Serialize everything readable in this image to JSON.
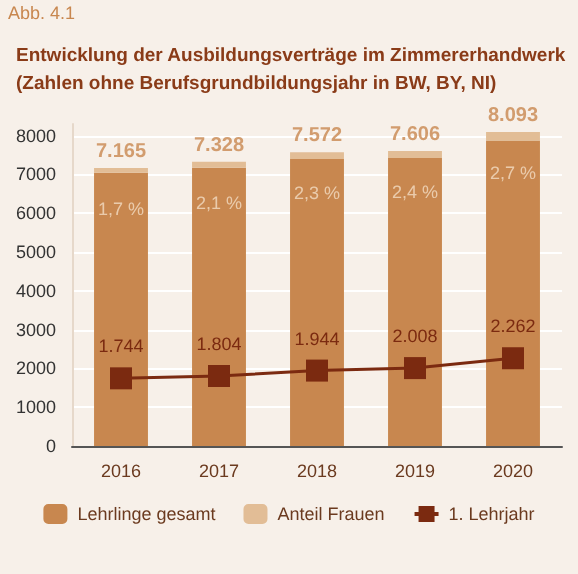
{
  "chart_data": {
    "type": "bar",
    "title": "Entwicklung der Ausbildungsverträge im Zimmererhandwerk\n(Zahlen ohne Berufsgrundbildungsjahr in BW, BY, NI)",
    "annotations": [
      "Abb. 4.1",
      {
        "text": "1,7 %",
        "x": "2016",
        "y": 7165
      },
      {
        "text": "2,1 %",
        "x": "2017",
        "y": 7328
      },
      {
        "text": "2,3 %",
        "x": "2018",
        "y": 7572
      },
      {
        "text": "2,4 %",
        "x": "2019",
        "y": 7606
      },
      {
        "text": "2,7 %",
        "x": "2020",
        "y": 8093
      }
    ],
    "categories": [
      "2016",
      "2017",
      "2018",
      "2019",
      "2020"
    ],
    "stacked": true,
    "series": [
      {
        "name": "Lehrlinge gesamt",
        "color": "#c8874f",
        "values": [
          7043,
          7174,
          7398,
          7423,
          7874
        ]
      },
      {
        "name": "Anteil Frauen",
        "color": "#e2bd96",
        "values": [
          122,
          154,
          174,
          183,
          219
        ]
      },
      {
        "name": "1. Lehrjahr",
        "type": "line",
        "color": "#7b2a10",
        "values": [
          1744,
          1804,
          1944,
          2008,
          2262
        ],
        "value_labels": [
          "1.744",
          "1.804",
          "1.944",
          "2.008",
          "2.262"
        ]
      }
    ],
    "totals": [
      "7.165",
      "7.328",
      "7.572",
      "7.606",
      "8.093"
    ],
    "ylim": [
      0,
      8300
    ],
    "yticks": [
      0,
      1000,
      2000,
      3000,
      4000,
      5000,
      6000,
      7000,
      8000
    ],
    "grid": "y",
    "legend": "bottom",
    "marker": "square",
    "line_style": "solid"
  }
}
